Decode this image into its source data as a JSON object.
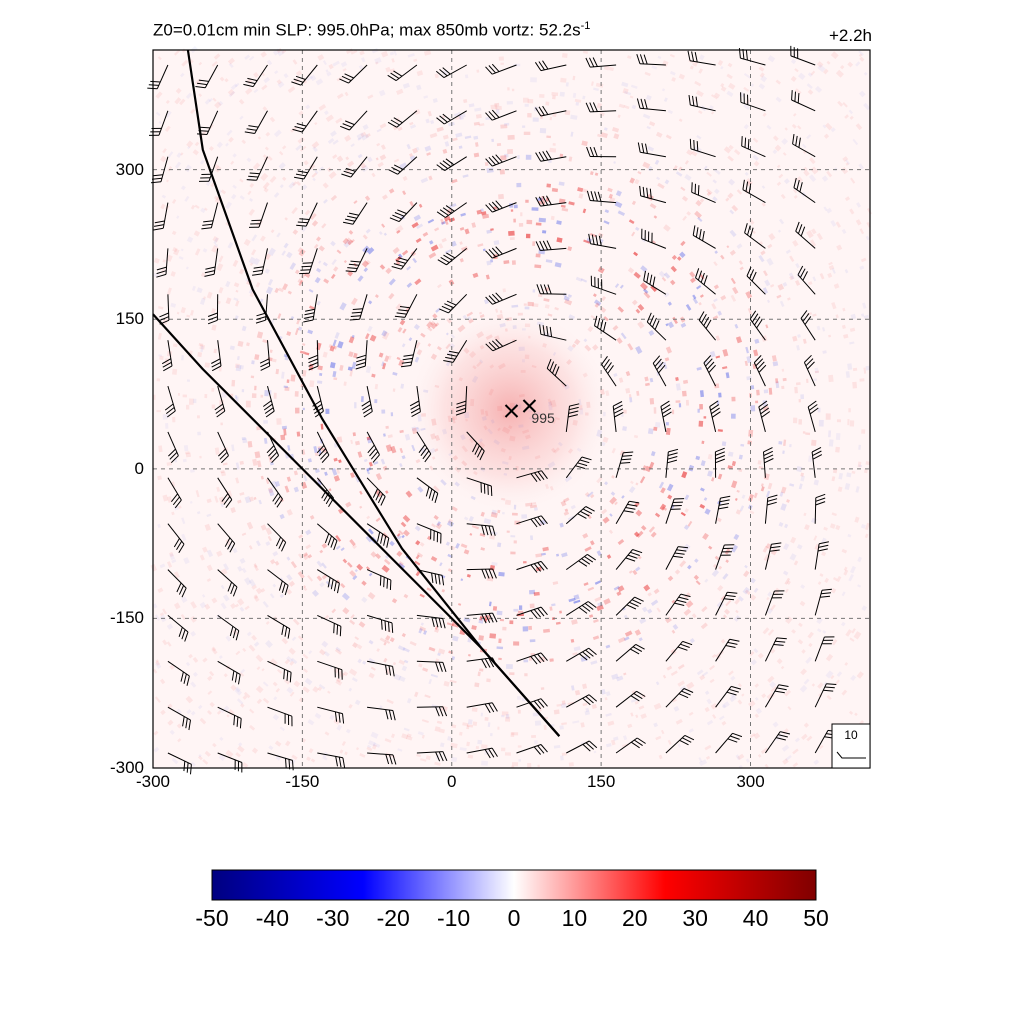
{
  "chart_data": {
    "type": "heatmap",
    "title_prefix": "Z0=0.01cm  min SLP: 995.0hPa; max 850mb vortz:  52.2s",
    "title_exponent": "-1",
    "time_label": "+2.2h",
    "x_ticks": [
      "-300",
      "-150",
      "0",
      "150",
      "300"
    ],
    "y_ticks": [
      "300",
      "150",
      "0",
      "-150",
      "-300"
    ],
    "xlim": [
      -300,
      420
    ],
    "ylim": [
      -300,
      420
    ],
    "grid": true,
    "colorbar": {
      "ticks": [
        "-50",
        "-40",
        "-30",
        "-20",
        "-10",
        "0",
        "10",
        "20",
        "30",
        "40",
        "50"
      ],
      "range": [
        -50,
        50
      ],
      "colors": [
        "#000080",
        "#0000ff",
        "#ffffff",
        "#ff0000",
        "#800000"
      ]
    },
    "storm_center_markers": [
      {
        "x": 60,
        "y": 58,
        "label": ""
      },
      {
        "x": 78,
        "y": 63,
        "label": "995"
      }
    ],
    "track_lines": [
      [
        [
          -265,
          420
        ],
        [
          -250,
          320
        ],
        [
          -200,
          180
        ],
        [
          -130,
          50
        ],
        [
          -50,
          -80
        ],
        [
          30,
          -180
        ],
        [
          108,
          -268
        ]
      ],
      [
        [
          -300,
          155
        ],
        [
          -250,
          100
        ],
        [
          -170,
          20
        ],
        [
          -60,
          -90
        ],
        [
          30,
          -180
        ],
        [
          108,
          -268
        ]
      ]
    ],
    "reference_barb_label": "10",
    "wind_units_reference": "10"
  }
}
